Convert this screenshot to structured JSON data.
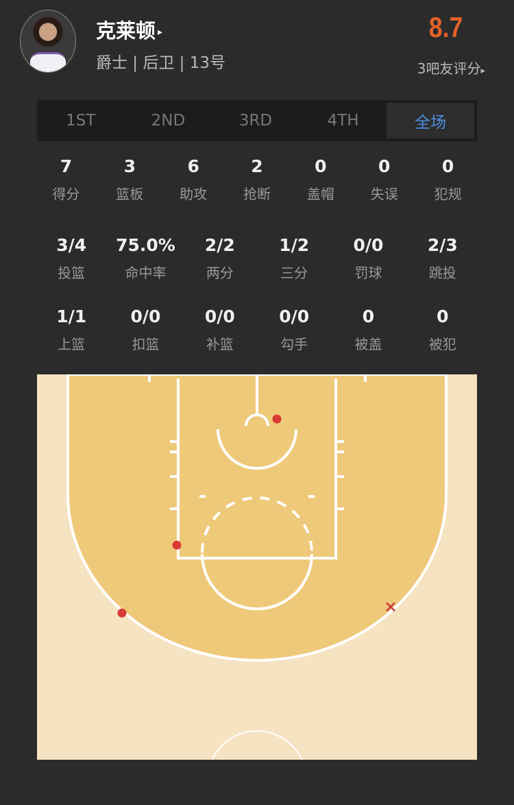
{
  "player": {
    "name": "克莱顿",
    "meta": "爵士 | 后卫 | 13号",
    "rating": "8.7",
    "raters": "3吧友评分",
    "arrow": "▸"
  },
  "tabs": [
    {
      "label": "1ST"
    },
    {
      "label": "2ND"
    },
    {
      "label": "3RD"
    },
    {
      "label": "4TH"
    },
    {
      "label": "全场",
      "active": true
    }
  ],
  "basic": [
    {
      "v": "7",
      "l": "得分"
    },
    {
      "v": "3",
      "l": "篮板"
    },
    {
      "v": "6",
      "l": "助攻"
    },
    {
      "v": "2",
      "l": "抢断"
    },
    {
      "v": "0",
      "l": "盖帽"
    },
    {
      "v": "0",
      "l": "失误"
    },
    {
      "v": "0",
      "l": "犯规"
    }
  ],
  "shooting": [
    {
      "v": "3/4",
      "l": "投篮"
    },
    {
      "v": "75.0%",
      "l": "命中率"
    },
    {
      "v": "2/2",
      "l": "两分"
    },
    {
      "v": "1/2",
      "l": "三分"
    },
    {
      "v": "0/0",
      "l": "罚球"
    },
    {
      "v": "2/3",
      "l": "跳投"
    }
  ],
  "shot_types": [
    {
      "v": "1/1",
      "l": "上篮"
    },
    {
      "v": "0/0",
      "l": "扣篮"
    },
    {
      "v": "0/0",
      "l": "补篮"
    },
    {
      "v": "0/0",
      "l": "勾手"
    },
    {
      "v": "0",
      "l": "被盖"
    },
    {
      "v": "0",
      "l": "被犯"
    }
  ],
  "shot_chart": {
    "shots": [
      {
        "result": "made"
      },
      {
        "result": "made"
      },
      {
        "result": "made"
      },
      {
        "result": "missed"
      }
    ],
    "colors": {
      "made": "#d93a35",
      "missed": "#c9383f",
      "paint": "#efc97a",
      "floor": "#f5e3c2",
      "lines": "#ffffff",
      "accent": "#e0622a",
      "active_tab": "#4a90e2"
    }
  }
}
